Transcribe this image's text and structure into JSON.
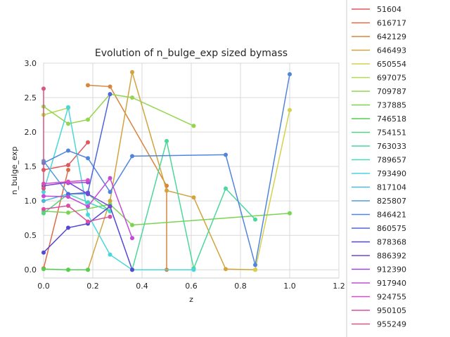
{
  "chart_data": {
    "type": "scatter",
    "title": "Evolution of n_bulge_exp sized bymass",
    "xlabel": "z",
    "ylabel": "n_bulge_exp",
    "xlim": [
      0,
      1.2
    ],
    "ylim": [
      -0.12,
      3.0
    ],
    "xticks": [
      "0.0",
      "0.2",
      "0.4",
      "0.6",
      "0.8",
      "1.0",
      "1.2"
    ],
    "yticks": [
      "0.0",
      "0.5",
      "1.0",
      "1.5",
      "2.0",
      "2.5",
      "3.0"
    ],
    "grid": true,
    "legend_position": "right",
    "series": [
      {
        "name": "51604",
        "color": "#e0575b",
        "points": [
          [
            0.0,
            1.45
          ],
          [
            0.1,
            1.52
          ],
          [
            0.18,
            1.85
          ]
        ]
      },
      {
        "name": "616717",
        "color": "#dc6c48",
        "points": [
          [
            0.0,
            0.02
          ],
          [
            0.1,
            1.45
          ]
        ]
      },
      {
        "name": "642129",
        "color": "#d9853c",
        "points": [
          [
            0.18,
            2.68
          ],
          [
            0.27,
            2.66
          ],
          [
            0.5,
            1.22
          ],
          [
            0.5,
            0.0
          ]
        ]
      },
      {
        "name": "646493",
        "color": "#d2a43e",
        "points": [
          [
            0.1,
            0.0
          ],
          [
            0.18,
            0.0
          ],
          [
            0.27,
            1.0
          ],
          [
            0.36,
            2.87
          ],
          [
            0.5,
            1.15
          ],
          [
            0.61,
            1.05
          ],
          [
            0.74,
            0.01
          ],
          [
            0.86,
            0.0
          ]
        ]
      },
      {
        "name": "650554",
        "color": "#d5d14e",
        "points": [
          [
            0.86,
            0.0
          ],
          [
            1.0,
            2.32
          ]
        ]
      },
      {
        "name": "697075",
        "color": "#b3d94e",
        "points": [
          [
            0.0,
            2.25
          ],
          [
            0.1,
            2.35
          ]
        ]
      },
      {
        "name": "709787",
        "color": "#93d64e",
        "points": [
          [
            0.0,
            2.37
          ],
          [
            0.1,
            2.12
          ],
          [
            0.18,
            2.18
          ],
          [
            0.27,
            2.55
          ],
          [
            0.36,
            2.5
          ],
          [
            0.61,
            2.09
          ]
        ]
      },
      {
        "name": "737885",
        "color": "#79d451",
        "points": [
          [
            0.0,
            0.85
          ],
          [
            0.1,
            0.83
          ],
          [
            0.27,
            0.95
          ],
          [
            0.36,
            0.65
          ],
          [
            1.0,
            0.82
          ]
        ]
      },
      {
        "name": "746518",
        "color": "#52d14d",
        "points": [
          [
            0.0,
            0.01
          ],
          [
            0.1,
            0.0
          ],
          [
            0.18,
            0.0
          ]
        ]
      },
      {
        "name": "754151",
        "color": "#4fd67c",
        "points": [
          [
            0.0,
            0.82
          ],
          [
            0.1,
            1.1
          ],
          [
            0.18,
            1.1
          ],
          [
            0.27,
            0.85
          ]
        ]
      },
      {
        "name": "763033",
        "color": "#4cd79b",
        "points": [
          [
            0.36,
            0.0
          ],
          [
            0.5,
            1.87
          ],
          [
            0.61,
            0.02
          ],
          [
            0.74,
            1.18
          ],
          [
            0.86,
            0.73
          ]
        ]
      },
      {
        "name": "789657",
        "color": "#49d7c0",
        "points": [
          [
            0.1,
            1.1
          ],
          [
            0.18,
            0.98
          ],
          [
            0.27,
            0.85
          ]
        ]
      },
      {
        "name": "793490",
        "color": "#4ad6db",
        "points": [
          [
            0.0,
            1.13
          ],
          [
            0.1,
            2.36
          ],
          [
            0.18,
            0.8
          ],
          [
            0.27,
            0.22
          ],
          [
            0.36,
            0.0
          ],
          [
            0.61,
            0.0
          ]
        ]
      },
      {
        "name": "817104",
        "color": "#4bb9da",
        "points": [
          [
            0.0,
            1.0
          ],
          [
            0.1,
            1.1
          ],
          [
            0.18,
            1.1
          ]
        ]
      },
      {
        "name": "825807",
        "color": "#4f9edb",
        "points": [
          [
            0.0,
            1.58
          ],
          [
            0.1,
            1.1
          ]
        ]
      },
      {
        "name": "846421",
        "color": "#5185dc",
        "points": [
          [
            0.0,
            1.55
          ],
          [
            0.1,
            1.73
          ],
          [
            0.18,
            1.62
          ],
          [
            0.27,
            1.13
          ],
          [
            0.36,
            1.65
          ],
          [
            0.74,
            1.67
          ],
          [
            0.86,
            0.07
          ],
          [
            1.0,
            2.84
          ]
        ]
      },
      {
        "name": "860575",
        "color": "#4e66da",
        "points": [
          [
            0.1,
            1.1
          ],
          [
            0.18,
            1.12
          ],
          [
            0.27,
            2.55
          ]
        ]
      },
      {
        "name": "878368",
        "color": "#5446d6",
        "points": [
          [
            0.0,
            0.25
          ],
          [
            0.1,
            0.61
          ],
          [
            0.18,
            0.67
          ],
          [
            0.27,
            0.92
          ],
          [
            0.36,
            0.0
          ]
        ]
      },
      {
        "name": "886392",
        "color": "#7645d6",
        "points": [
          [
            0.0,
            1.22
          ],
          [
            0.1,
            1.27
          ],
          [
            0.18,
            1.1
          ],
          [
            0.27,
            0.92
          ]
        ]
      },
      {
        "name": "912390",
        "color": "#9a47d8",
        "points": [
          [
            0.1,
            1.26
          ],
          [
            0.18,
            1.27
          ]
        ]
      },
      {
        "name": "917940",
        "color": "#c44bd8",
        "points": [
          [
            0.0,
            1.07
          ],
          [
            0.1,
            1.06
          ],
          [
            0.18,
            0.92
          ],
          [
            0.27,
            1.33
          ],
          [
            0.36,
            0.46
          ]
        ]
      },
      {
        "name": "924755",
        "color": "#d74ccb",
        "points": [
          [
            0.0,
            1.25
          ],
          [
            0.1,
            1.28
          ],
          [
            0.18,
            1.3
          ]
        ]
      },
      {
        "name": "950105",
        "color": "#d84fa5",
        "points": [
          [
            0.0,
            0.88
          ],
          [
            0.1,
            0.93
          ],
          [
            0.18,
            0.7
          ],
          [
            0.27,
            0.77
          ]
        ]
      },
      {
        "name": "955249",
        "color": "#db5482",
        "points": [
          [
            0.0,
            2.63
          ],
          [
            0.0,
            1.18
          ]
        ]
      }
    ]
  }
}
